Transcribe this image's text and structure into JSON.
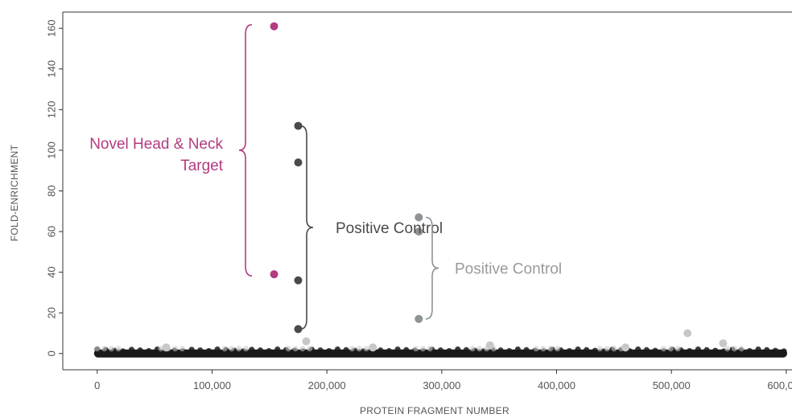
{
  "chart_data": {
    "type": "scatter",
    "title": "",
    "xlabel": "PROTEIN FRAGMENT NUMBER",
    "ylabel": "FOLD-ENRICHMENT",
    "xlim": [
      -30000,
      605000
    ],
    "ylim": [
      -8,
      168
    ],
    "x_ticks": [
      0,
      100000,
      200000,
      300000,
      400000,
      500000,
      600000
    ],
    "x_tick_labels": [
      "0",
      "100,000",
      "200,000",
      "300,000",
      "400,000",
      "500,000",
      "600,000"
    ],
    "y_ticks": [
      0,
      20,
      40,
      60,
      80,
      100,
      120,
      140,
      160
    ],
    "y_tick_labels": [
      "0",
      "20",
      "40",
      "60",
      "80",
      "100",
      "120",
      "140",
      "160"
    ],
    "grid": false,
    "colors": {
      "novel": "#b33b80",
      "positive_dark": "#4a4a4a",
      "positive_light": "#8e9496",
      "background_points": "#1a1a1a",
      "faint_points": "#c8c8c8"
    },
    "series": [
      {
        "group": "novel",
        "points": [
          {
            "x": 154000,
            "y": 161
          },
          {
            "x": 154000,
            "y": 39
          }
        ]
      },
      {
        "group": "positive_dark",
        "points": [
          {
            "x": 175000,
            "y": 112
          },
          {
            "x": 175000,
            "y": 94
          },
          {
            "x": 175000,
            "y": 36
          },
          {
            "x": 175000,
            "y": 12
          }
        ]
      },
      {
        "group": "positive_light",
        "points": [
          {
            "x": 280000,
            "y": 67
          },
          {
            "x": 280000,
            "y": 60
          },
          {
            "x": 280000,
            "y": 17
          }
        ]
      },
      {
        "group": "faint",
        "points": [
          {
            "x": 182000,
            "y": 6
          },
          {
            "x": 514000,
            "y": 10
          },
          {
            "x": 545000,
            "y": 5
          },
          {
            "x": 342000,
            "y": 4
          },
          {
            "x": 460000,
            "y": 3
          },
          {
            "x": 60000,
            "y": 3
          },
          {
            "x": 240000,
            "y": 3
          }
        ]
      },
      {
        "group": "background",
        "range_x": [
          0,
          598000
        ],
        "y_approx": 0
      }
    ],
    "annotations": [
      {
        "text_lines": [
          "Novel Head & Neck",
          "Target"
        ],
        "group": "novel",
        "bracket_y": [
          39,
          161
        ]
      },
      {
        "text_lines": [
          "Positive Control"
        ],
        "group": "positive_dark",
        "bracket_y": [
          12,
          112
        ]
      },
      {
        "text_lines": [
          "Positive Control"
        ],
        "group": "positive_light",
        "bracket_y": [
          17,
          67
        ]
      }
    ]
  }
}
